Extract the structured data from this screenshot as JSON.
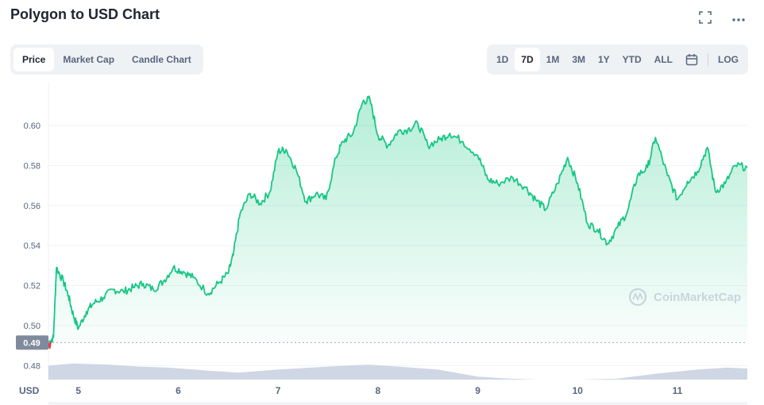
{
  "header": {
    "title": "Polygon to USD Chart",
    "icons": [
      "fullscreen-icon",
      "more-options-icon"
    ]
  },
  "tabs": {
    "left": [
      {
        "label": "Price",
        "active": true
      },
      {
        "label": "Market Cap",
        "active": false
      },
      {
        "label": "Candle Chart",
        "active": false
      }
    ],
    "ranges": [
      {
        "label": "1D",
        "active": false
      },
      {
        "label": "7D",
        "active": true
      },
      {
        "label": "1M",
        "active": false
      },
      {
        "label": "3M",
        "active": false
      },
      {
        "label": "1Y",
        "active": false
      },
      {
        "label": "YTD",
        "active": false
      },
      {
        "label": "ALL",
        "active": false
      }
    ],
    "calendar_icon": "calendar-icon",
    "log_label": "LOG"
  },
  "colors": {
    "line": "#16c784",
    "fill_top": "#16c784",
    "volume": "#cfd6e4",
    "badge": "#808a9d",
    "down": "#ea3943"
  },
  "chart_data": {
    "type": "area",
    "ylabel": "USD",
    "ylim": [
      0.473,
      0.623
    ],
    "yticks": [
      "0.60",
      "0.58",
      "0.56",
      "0.54",
      "0.52",
      "0.50",
      "0.48"
    ],
    "xticks": [
      "5",
      "6",
      "7",
      "8",
      "9",
      "10",
      "11"
    ],
    "current_price": "0.49",
    "watermark": "CoinMarketCap",
    "series": [
      {
        "values": [
          [
            4.7,
            0.4915
          ],
          [
            4.75,
            0.494
          ],
          [
            4.78,
            0.529
          ],
          [
            4.85,
            0.522
          ],
          [
            4.9,
            0.515
          ],
          [
            4.95,
            0.505
          ],
          [
            5.0,
            0.4985
          ],
          [
            5.08,
            0.507
          ],
          [
            5.15,
            0.511
          ],
          [
            5.25,
            0.514
          ],
          [
            5.35,
            0.518
          ],
          [
            5.45,
            0.517
          ],
          [
            5.55,
            0.519
          ],
          [
            5.65,
            0.521
          ],
          [
            5.75,
            0.518
          ],
          [
            5.85,
            0.522
          ],
          [
            5.95,
            0.529
          ],
          [
            6.05,
            0.527
          ],
          [
            6.15,
            0.524
          ],
          [
            6.3,
            0.516
          ],
          [
            6.4,
            0.521
          ],
          [
            6.5,
            0.526
          ],
          [
            6.55,
            0.535
          ],
          [
            6.62,
            0.556
          ],
          [
            6.72,
            0.566
          ],
          [
            6.82,
            0.561
          ],
          [
            6.92,
            0.567
          ],
          [
            7.0,
            0.587
          ],
          [
            7.08,
            0.588
          ],
          [
            7.18,
            0.578
          ],
          [
            7.28,
            0.562
          ],
          [
            7.38,
            0.566
          ],
          [
            7.48,
            0.563
          ],
          [
            7.58,
            0.584
          ],
          [
            7.65,
            0.592
          ],
          [
            7.75,
            0.596
          ],
          [
            7.85,
            0.612
          ],
          [
            7.92,
            0.613
          ],
          [
            8.0,
            0.595
          ],
          [
            8.1,
            0.59
          ],
          [
            8.2,
            0.597
          ],
          [
            8.3,
            0.598
          ],
          [
            8.4,
            0.601
          ],
          [
            8.5,
            0.59
          ],
          [
            8.62,
            0.593
          ],
          [
            8.72,
            0.596
          ],
          [
            8.85,
            0.592
          ],
          [
            9.0,
            0.585
          ],
          [
            9.1,
            0.573
          ],
          [
            9.2,
            0.571
          ],
          [
            9.35,
            0.574
          ],
          [
            9.48,
            0.569
          ],
          [
            9.58,
            0.563
          ],
          [
            9.68,
            0.558
          ],
          [
            9.8,
            0.571
          ],
          [
            9.9,
            0.584
          ],
          [
            10.0,
            0.571
          ],
          [
            10.1,
            0.551
          ],
          [
            10.2,
            0.548
          ],
          [
            10.3,
            0.541
          ],
          [
            10.4,
            0.549
          ],
          [
            10.5,
            0.557
          ],
          [
            10.6,
            0.575
          ],
          [
            10.7,
            0.579
          ],
          [
            10.78,
            0.594
          ],
          [
            10.9,
            0.575
          ],
          [
            11.0,
            0.563
          ],
          [
            11.1,
            0.572
          ],
          [
            11.2,
            0.577
          ],
          [
            11.3,
            0.589
          ],
          [
            11.38,
            0.567
          ],
          [
            11.48,
            0.571
          ],
          [
            11.58,
            0.58
          ],
          [
            11.7,
            0.579
          ]
        ]
      }
    ],
    "volume": [
      [
        4.7,
        0.48
      ],
      [
        4.95,
        0.481
      ],
      [
        5.3,
        0.4805
      ],
      [
        5.6,
        0.4795
      ],
      [
        5.9,
        0.479
      ],
      [
        6.3,
        0.4775
      ],
      [
        6.6,
        0.4765
      ],
      [
        7.0,
        0.478
      ],
      [
        7.5,
        0.4795
      ],
      [
        7.9,
        0.4805
      ],
      [
        8.2,
        0.4795
      ],
      [
        8.6,
        0.478
      ],
      [
        9.0,
        0.4745
      ],
      [
        9.3,
        0.4735
      ],
      [
        9.6,
        0.473
      ],
      [
        10.0,
        0.473
      ],
      [
        10.4,
        0.4735
      ],
      [
        10.8,
        0.476
      ],
      [
        11.2,
        0.478
      ],
      [
        11.5,
        0.479
      ],
      [
        11.7,
        0.4785
      ]
    ]
  }
}
